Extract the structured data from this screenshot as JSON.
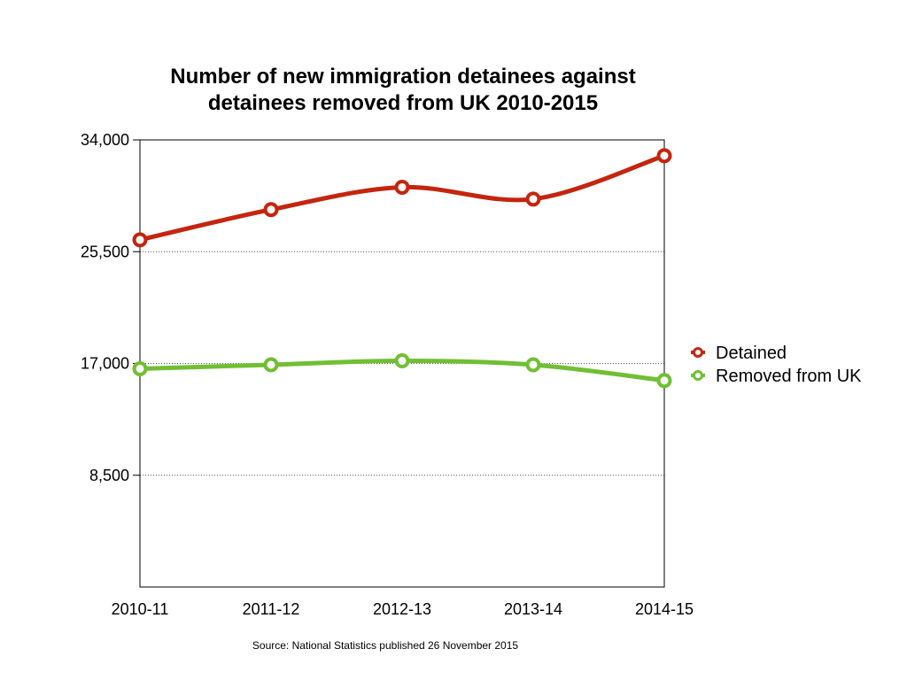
{
  "chart_data": {
    "type": "line",
    "title_lines": [
      "Number of new immigration detainees against",
      "detainees removed from UK 2010-2015"
    ],
    "categories": [
      "2010-11",
      "2011-12",
      "2012-13",
      "2013-14",
      "2014-15"
    ],
    "ylim": [
      0,
      34000
    ],
    "yticks": [
      8500,
      17000,
      25500,
      34000
    ],
    "ytick_labels": [
      "8,500",
      "17,000",
      "25,500",
      "34,000"
    ],
    "grid": true,
    "legend_position": "right",
    "series": [
      {
        "name": "Detained",
        "color": "#c4250f",
        "values": [
          26400,
          28700,
          30400,
          29500,
          32800
        ]
      },
      {
        "name": "Removed from UK",
        "color": "#71bf34",
        "values": [
          16600,
          16900,
          17200,
          16900,
          15700
        ]
      }
    ],
    "source": "Source: National Statistics published 26 November 2015"
  }
}
